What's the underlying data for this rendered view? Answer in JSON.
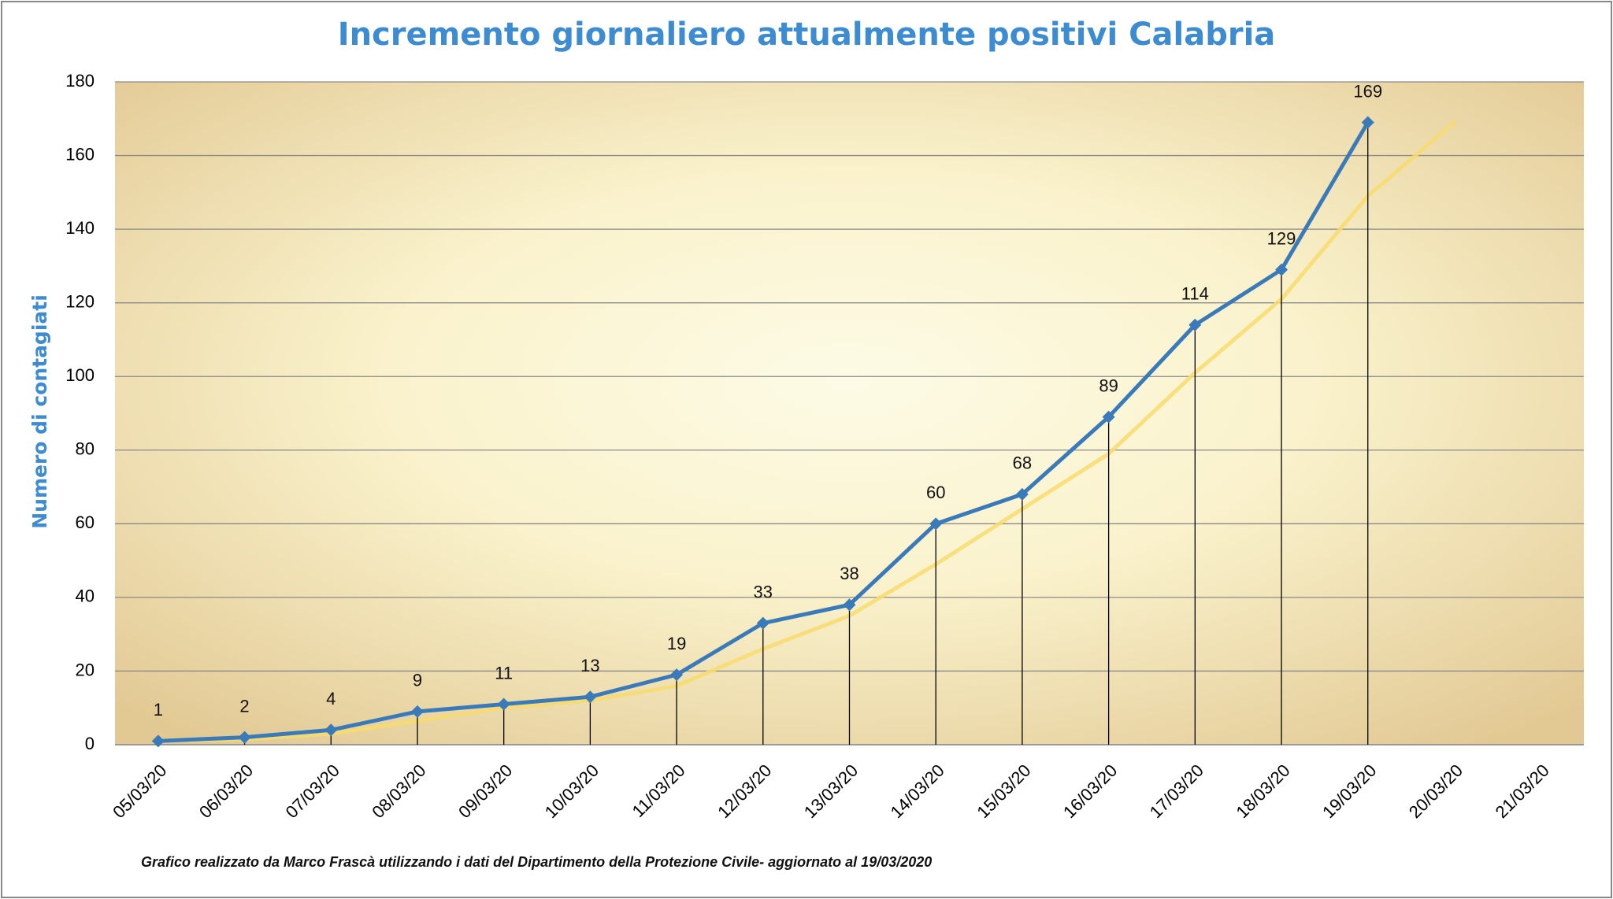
{
  "chart_data": {
    "type": "line",
    "title": "Incremento giornaliero attualmente positivi Calabria",
    "y_label": "Numero di contagiati",
    "footnote": "Grafico  realizzato da Marco Frascà  utilizzando i dati del Dipartimento  della Protezione Civile- aggiornato al 19/03/2020",
    "categories": [
      "05/03/20",
      "06/03/20",
      "07/03/20",
      "08/03/20",
      "09/03/20",
      "10/03/20",
      "11/03/20",
      "12/03/20",
      "13/03/20",
      "14/03/20",
      "15/03/20",
      "16/03/20",
      "17/03/20",
      "18/03/20",
      "19/03/20",
      "20/03/20",
      "21/03/20"
    ],
    "series": [
      {
        "color": "#f7dc6f",
        "values": [
          1,
          1.5,
          3,
          6.5,
          10,
          12,
          16,
          26,
          35,
          49,
          64,
          79,
          101,
          121,
          149,
          169,
          null
        ]
      },
      {
        "color": "#3a7ab8",
        "values": [
          1,
          2,
          4,
          9,
          11,
          13,
          19,
          33,
          38,
          60,
          68,
          89,
          114,
          129,
          169,
          null,
          null
        ],
        "data_labels": true,
        "drop_lines": true
      }
    ],
    "ylim": [
      0,
      180
    ],
    "yticks": [
      0,
      20,
      40,
      60,
      80,
      100,
      120,
      140,
      160,
      180
    ],
    "grid": true
  }
}
